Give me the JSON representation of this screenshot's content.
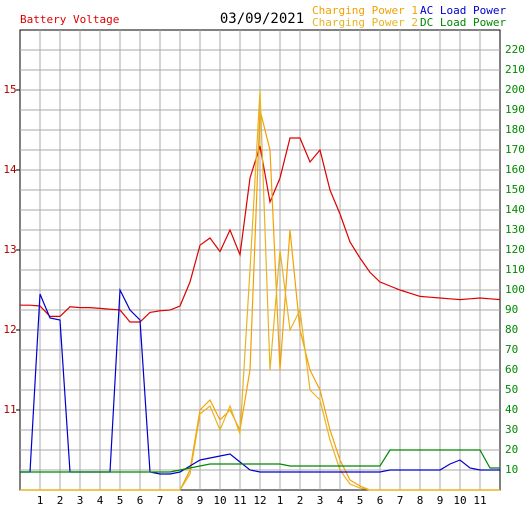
{
  "chart_data": {
    "type": "line",
    "title": "03/09/2021",
    "y_label": "Battery Voltage",
    "x": [
      0,
      0.5,
      1,
      1.5,
      2,
      2.5,
      3,
      3.5,
      4,
      4.5,
      5,
      5.5,
      6,
      6.5,
      7,
      7.5,
      8,
      8.5,
      9,
      9.5,
      10,
      10.5,
      11,
      11.5,
      12,
      12.5,
      13,
      13.5,
      14,
      14.5,
      15,
      15.5,
      16,
      16.5,
      17,
      17.5,
      18,
      18.5,
      19,
      19.5,
      20,
      20.5,
      21,
      21.5,
      22,
      22.5,
      23,
      23.5,
      24
    ],
    "xlim": [
      0,
      24
    ],
    "xticks": [
      1,
      2,
      3,
      4,
      5,
      6,
      7,
      8,
      9,
      10,
      11,
      12,
      {
        "value": 13,
        "label": "1"
      },
      {
        "value": 14,
        "label": "2"
      },
      {
        "value": 15,
        "label": "3"
      },
      {
        "value": 16,
        "label": "4"
      },
      {
        "value": 17,
        "label": "5"
      },
      {
        "value": 18,
        "label": "6"
      },
      {
        "value": 19,
        "label": "7"
      },
      {
        "value": 20,
        "label": "8"
      },
      {
        "value": 21,
        "label": "9"
      },
      {
        "value": 22,
        "label": "10"
      },
      {
        "value": 23,
        "label": "11"
      }
    ],
    "ylim": [
      10,
      15.75
    ],
    "yticks": [
      11,
      12,
      13,
      14,
      15
    ],
    "y2lim": [
      0,
      230
    ],
    "y2ticks": [
      10,
      20,
      30,
      40,
      50,
      60,
      70,
      80,
      90,
      100,
      110,
      120,
      130,
      140,
      150,
      160,
      170,
      180,
      190,
      200,
      210,
      220
    ],
    "grid": true,
    "series": [
      {
        "name": "Battery Voltage",
        "color": "#dd0000",
        "axis": "y",
        "values": [
          12.31,
          12.31,
          12.3,
          12.17,
          12.17,
          12.29,
          12.28,
          12.28,
          12.27,
          12.26,
          12.25,
          12.1,
          12.1,
          12.22,
          12.24,
          12.25,
          12.3,
          12.6,
          13.06,
          13.15,
          12.98,
          13.25,
          12.94,
          13.9,
          14.3,
          13.6,
          13.9,
          14.4,
          14.4,
          14.1,
          14.25,
          13.75,
          13.45,
          13.1,
          12.9,
          12.72,
          12.6,
          12.55,
          12.5,
          12.46,
          12.42,
          12.41,
          12.4,
          12.39,
          12.38,
          12.39,
          12.4,
          12.39,
          12.38
        ]
      },
      {
        "name": "Charging Power 1",
        "color": "#f5a000",
        "axis": "y2",
        "values": [
          0,
          0,
          0,
          0,
          0,
          0,
          0,
          0,
          0,
          0,
          0,
          0,
          0,
          0,
          0,
          0,
          0,
          10,
          40,
          45,
          35,
          40,
          30,
          60,
          190,
          170,
          60,
          130,
          80,
          60,
          50,
          30,
          15,
          5,
          2,
          0,
          0,
          0,
          0,
          0,
          0,
          0,
          0,
          0,
          0,
          0,
          0,
          0,
          0
        ]
      },
      {
        "name": "Charging Power 2",
        "color": "#e6b422",
        "axis": "y2",
        "values": [
          0,
          0,
          0,
          0,
          0,
          0,
          0,
          0,
          0,
          0,
          0,
          0,
          0,
          0,
          0,
          0,
          0,
          8,
          38,
          42,
          30,
          42,
          28,
          110,
          200,
          60,
          120,
          80,
          90,
          50,
          45,
          25,
          10,
          3,
          1,
          0,
          0,
          0,
          0,
          0,
          0,
          0,
          0,
          0,
          0,
          0,
          0,
          0,
          0
        ]
      },
      {
        "name": "AC Load Power",
        "color": "#0000cc",
        "axis": "y2",
        "values": [
          9,
          9,
          98,
          86,
          85,
          9,
          9,
          9,
          9,
          9,
          100,
          90,
          85,
          9,
          8,
          8,
          9,
          12,
          15,
          16,
          17,
          18,
          14,
          10,
          9,
          9,
          9,
          9,
          9,
          9,
          9,
          9,
          9,
          9,
          9,
          9,
          9,
          10,
          10,
          10,
          10,
          10,
          10,
          13,
          15,
          11,
          10,
          10,
          10
        ]
      },
      {
        "name": "DC Load Power",
        "color": "#008800",
        "axis": "y2",
        "values": [
          9,
          9,
          9,
          9,
          9,
          9,
          9,
          9,
          9,
          9,
          9,
          9,
          9,
          9,
          9,
          9,
          10,
          11,
          12,
          13,
          13,
          13,
          13,
          13,
          13,
          13,
          13,
          12,
          12,
          12,
          12,
          12,
          12,
          12,
          12,
          12,
          12,
          20,
          20,
          20,
          20,
          20,
          20,
          20,
          20,
          20,
          20,
          11,
          11
        ]
      }
    ]
  }
}
